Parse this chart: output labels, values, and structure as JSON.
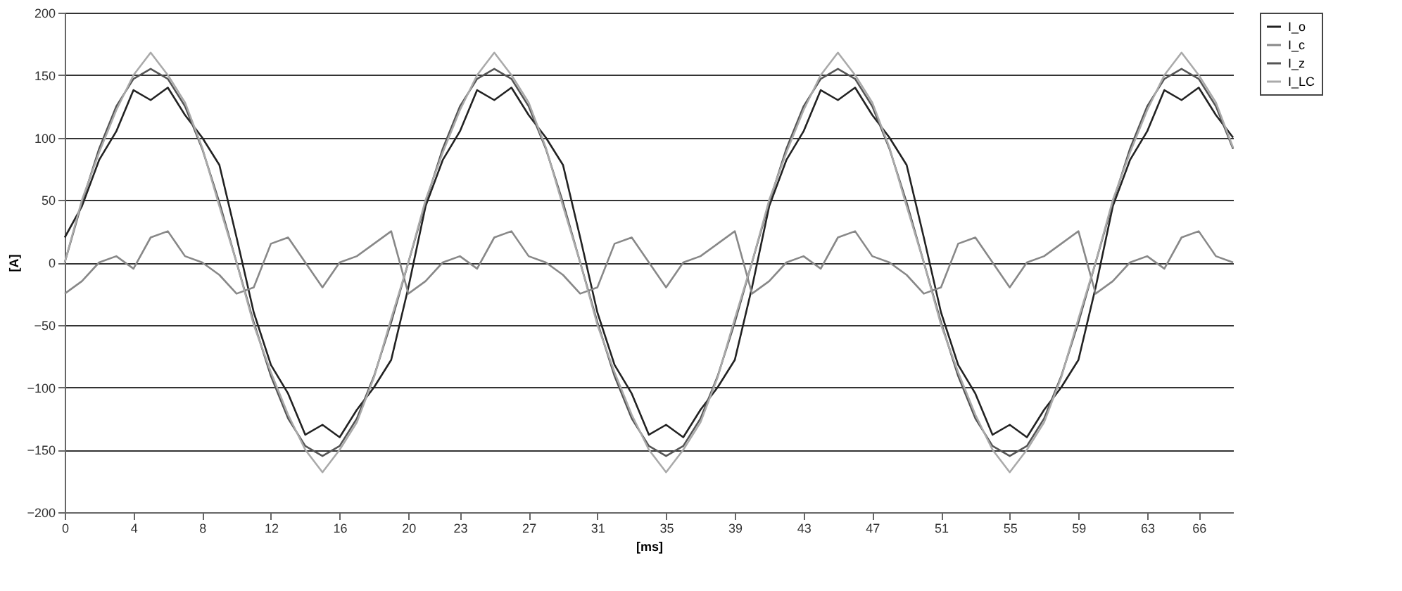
{
  "chart_data": {
    "type": "line",
    "xlabel": "[ms]",
    "ylabel": "[A]",
    "xlim": [
      0,
      68
    ],
    "xticks": [
      0,
      4,
      8,
      12,
      16,
      20,
      23,
      27,
      31,
      35,
      39,
      43,
      47,
      51,
      55,
      59,
      63,
      66
    ],
    "ylim": [
      -200,
      200
    ],
    "yticks": [
      -200,
      -150,
      -100,
      -50,
      0,
      50,
      100,
      150,
      200
    ],
    "grid": "y",
    "legend": "right",
    "marker": "none",
    "line_style": "solid",
    "x": [
      0,
      1,
      2,
      3,
      4,
      5,
      6,
      7,
      8,
      9,
      10,
      11,
      12,
      13,
      14,
      15,
      16,
      17,
      18,
      19,
      20,
      21,
      22,
      23,
      24,
      25,
      26,
      27,
      28,
      29,
      30,
      31,
      32,
      33,
      34,
      35,
      36,
      37,
      38,
      39,
      40,
      41,
      42,
      43,
      44,
      45,
      46,
      47,
      48,
      49,
      50,
      51,
      52,
      53,
      54,
      55,
      56,
      57,
      58,
      59,
      60,
      61,
      62,
      63,
      64,
      65,
      66,
      67,
      68
    ],
    "series": [
      {
        "name": "I_o",
        "color": "#222222",
        "values": [
          20,
          45,
          82,
          105,
          138,
          130,
          140,
          118,
          100,
          78,
          20,
          -40,
          -82,
          -105,
          -138,
          -130,
          -140,
          -118,
          -100,
          -78,
          -20,
          45,
          82,
          105,
          138,
          130,
          140,
          118,
          100,
          78,
          20,
          -40,
          -82,
          -105,
          -138,
          -130,
          -140,
          -118,
          -100,
          -78,
          -20,
          45,
          82,
          105,
          138,
          130,
          140,
          118,
          100,
          78,
          20,
          -40,
          -82,
          -105,
          -138,
          -130,
          -140,
          -118,
          -100,
          -78,
          -20,
          45,
          82,
          105,
          138,
          130,
          140,
          118,
          100
        ]
      },
      {
        "name": "I_c",
        "color": "#888888",
        "values": [
          -25,
          -15,
          0,
          5,
          -5,
          20,
          25,
          5,
          0,
          -10,
          -25,
          -20,
          15,
          20,
          0,
          -20,
          0,
          5,
          15,
          25,
          -25,
          -15,
          0,
          5,
          -5,
          20,
          25,
          5,
          0,
          -10,
          -25,
          -20,
          15,
          20,
          0,
          -20,
          0,
          5,
          15,
          25,
          -25,
          -15,
          0,
          5,
          -5,
          20,
          25,
          5,
          0,
          -10,
          -25,
          -20,
          15,
          20,
          0,
          -20,
          0,
          5,
          15,
          25,
          -25,
          -15,
          0,
          5,
          -5,
          20,
          25,
          5,
          0
        ]
      },
      {
        "name": "I_z",
        "color": "#555555",
        "values": [
          0,
          48,
          91,
          125,
          147,
          155,
          147,
          125,
          91,
          48,
          0,
          -48,
          -91,
          -125,
          -147,
          -155,
          -147,
          -125,
          -91,
          -48,
          0,
          48,
          91,
          125,
          147,
          155,
          147,
          125,
          91,
          48,
          0,
          -48,
          -91,
          -125,
          -147,
          -155,
          -147,
          -125,
          -91,
          -48,
          0,
          48,
          91,
          125,
          147,
          155,
          147,
          125,
          91,
          48,
          0,
          -48,
          -91,
          -125,
          -147,
          -155,
          -147,
          -125,
          -91,
          -48,
          0,
          48,
          91,
          125,
          147,
          155,
          147,
          125,
          91
        ]
      },
      {
        "name": "I_LC",
        "color": "#aaaaaa",
        "values": [
          0,
          50,
          88,
          122,
          150,
          168,
          150,
          128,
          92,
          45,
          0,
          -50,
          -88,
          -122,
          -150,
          -168,
          -150,
          -128,
          -92,
          -45,
          0,
          50,
          88,
          122,
          150,
          168,
          150,
          128,
          92,
          45,
          0,
          -50,
          -88,
          -122,
          -150,
          -168,
          -150,
          -128,
          -92,
          -45,
          0,
          50,
          88,
          122,
          150,
          168,
          150,
          128,
          92,
          45,
          0,
          -50,
          -88,
          -122,
          -150,
          -168,
          -150,
          -128,
          -92,
          -45,
          0,
          50,
          88,
          122,
          150,
          168,
          150,
          128,
          92
        ]
      }
    ]
  }
}
